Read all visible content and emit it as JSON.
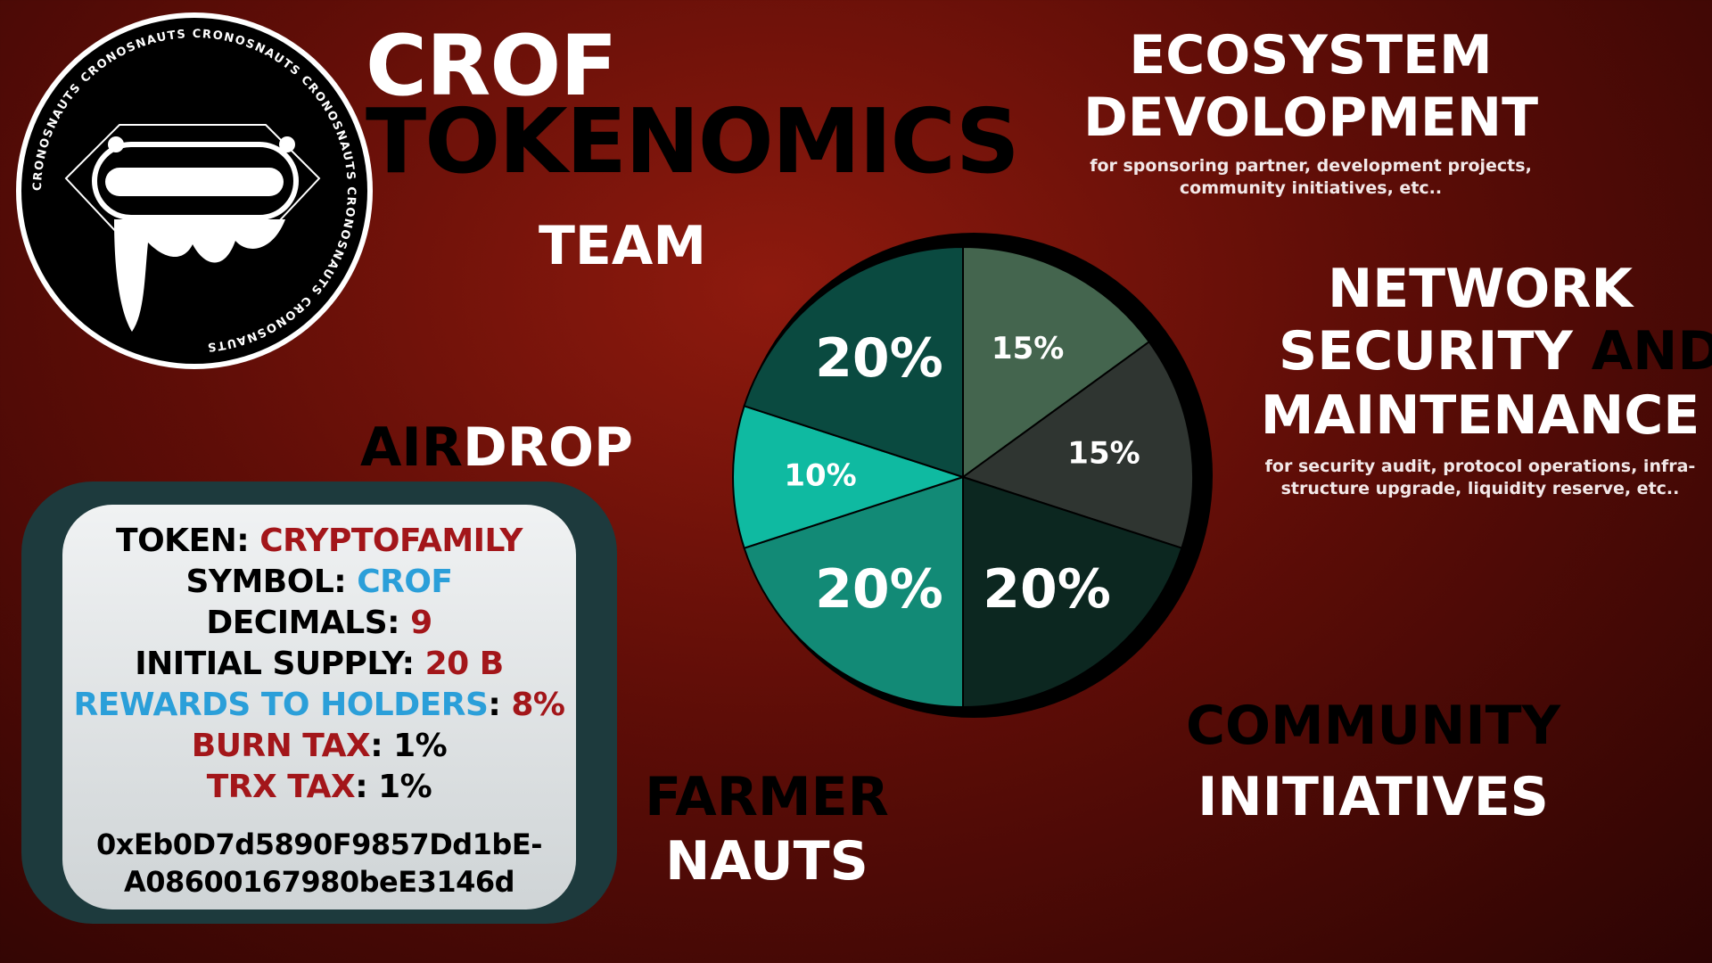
{
  "colors": {
    "ecosystem": "#44654e",
    "network": "#2f3531",
    "community": "#0c2720",
    "farmer": "#128a76",
    "airdrop": "#0fbaa1",
    "team": "#0a4a40",
    "accent_red": "#a3161a",
    "accent_blue": "#2b9fd9"
  },
  "logo": {
    "ring_text": "CRONOSNAUTS CRONOSNAUTS CRONOSNAUTS CRONOSNAUTS CRONOSNAUTS CRONOSNAUTS"
  },
  "title": {
    "line1": "CROF",
    "line2": "TOKENOMICS"
  },
  "labels": {
    "ecosystem_1": "ECOSYSTEM",
    "ecosystem_2": "DEVOLOPMENT",
    "ecosystem_sub_1": "for sponsoring partner, development projects,",
    "ecosystem_sub_2": "community initiatives, etc..",
    "team": "TEAM",
    "network_1": "NETWORK",
    "network_2a": "SECURITY",
    "network_2b": "AND",
    "network_3": "MAINTENANCE",
    "network_sub_1": "for security audit, protocol operations, infra-",
    "network_sub_2": "structure upgrade, liquidity reserve, etc..",
    "airdrop_a": "AIR",
    "airdrop_b": "DROP",
    "community_1": "COMMUNITY",
    "community_2": "INITIATIVES",
    "farmer_1": "FARMER",
    "farmer_2": "NAUTS"
  },
  "token_info": {
    "token_label": "TOKEN: ",
    "token_value": "CRYPTOFAMILY",
    "symbol_label": "SYMBOL: ",
    "symbol_value": "CROF",
    "decimals_label": "DECIMALS: ",
    "decimals_value": "9",
    "supply_label": "INITIAL SUPPLY: ",
    "supply_value": "20 B",
    "rewards_label": "REWARDS TO HOLDERS",
    "rewards_sep": ": ",
    "rewards_value": "8%",
    "burn_label": "BURN TAX",
    "burn_value": ": 1%",
    "trx_label": "TRX TAX",
    "trx_value": ": 1%",
    "address_1": "0xEb0D7d5890F9857Dd1bE-",
    "address_2": "A08600167980beE3146d"
  },
  "chart_data": {
    "type": "pie",
    "slices": [
      {
        "name": "ECOSYSTEM DEVOLOPMENT",
        "value": 15,
        "label": "15%",
        "color": "#44654e"
      },
      {
        "name": "NETWORK SECURITY AND MAINTENANCE",
        "value": 15,
        "label": "15%",
        "color": "#2f3531"
      },
      {
        "name": "COMMUNITY INITIATIVES",
        "value": 20,
        "label": "20%",
        "color": "#0c2720"
      },
      {
        "name": "FARMER NAUTS",
        "value": 20,
        "label": "20%",
        "color": "#128a76"
      },
      {
        "name": "AIRDROP",
        "value": 10,
        "label": "10%",
        "color": "#0fbaa1"
      },
      {
        "name": "TEAM",
        "value": 20,
        "label": "20%",
        "color": "#0a4a40"
      }
    ]
  }
}
